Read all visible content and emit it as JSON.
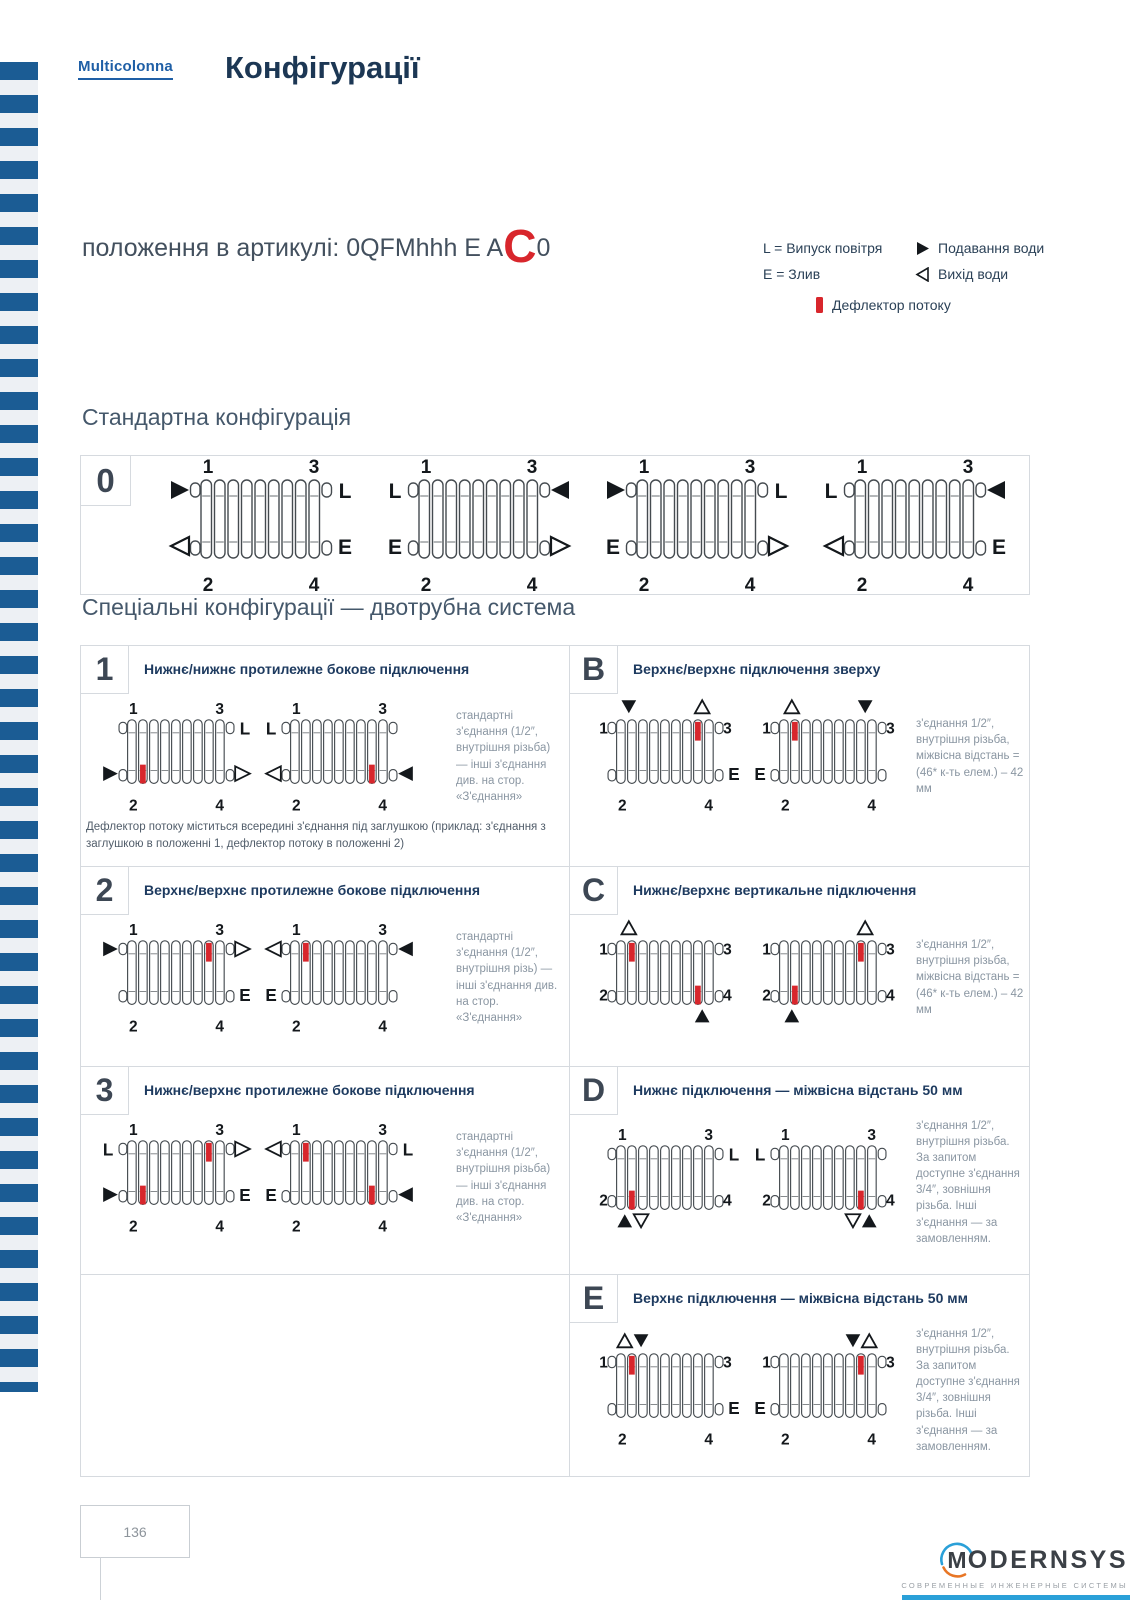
{
  "colors": {
    "stripe_blue": "#1b5c94",
    "brand_blue": "#1f5fa6",
    "navy": "#1d3a5f",
    "red": "#d8262c",
    "logo_blue": "#2aa0d8",
    "logo_orange": "#e87625"
  },
  "header": {
    "brand": "Multicolonna",
    "title": "Конфігурації"
  },
  "article": {
    "prefix": "положення в артикулі: 0QFMhhh E A",
    "highlight": "C",
    "suffix": "0"
  },
  "legend": {
    "l": "L = Випуск повітря",
    "e": "E = Злив",
    "supply": "Подавання води",
    "outlet": "Вихід води",
    "deflector": "Дефлектор потоку"
  },
  "standard": {
    "heading": "Стандартна конфігурація",
    "code": "0",
    "diagrams": [
      {
        "tl": "in",
        "tr": "L",
        "bl": "out",
        "br": "E"
      },
      {
        "tl": "L",
        "tr": "in",
        "bl": "E",
        "br": "out"
      },
      {
        "tl": "in",
        "tr": "L",
        "bl": "E",
        "br": "out"
      },
      {
        "tl": "L",
        "tr": "in",
        "bl": "out",
        "br": "E"
      }
    ]
  },
  "special": {
    "heading": "Спеціальні конфігурації — двотрубна система",
    "layout": [
      "1",
      "B",
      "2",
      "C",
      "3",
      "D",
      "",
      "E"
    ],
    "rows": [
      {
        "code": "1",
        "title": "Нижнє/нижнє протилежне бокове підключення",
        "note": "стандартні з'єднання (1/2″, внутрішня різьба) — інші з'єднання див. на стор. «З'єднання»",
        "footnote": "Дефлектор потоку міститься всередині з'єднання під заглушкою (приклад: з'єднання з заглушкою в положенні 1, дефлектор потоку в положенні 2)",
        "diagrams": [
          {
            "tr": "L",
            "bl": "in",
            "br": "out",
            "defl": [
              "p2"
            ]
          },
          {
            "tl": "L",
            "bl": "out",
            "br": "in",
            "defl": [
              "p4"
            ]
          }
        ]
      },
      {
        "code": "B",
        "title": "Верхнє/верхнє підключення зверху",
        "note": "з'єднання 1/2″, внутрішня різьба, міжвісна відстань = (46* к-ть елем.) – 42 мм",
        "diagrams": [
          {
            "top": [
              {
                "side": "left",
                "t": [
                  "in"
                ]
              },
              {
                "side": "right",
                "t": [
                  "out"
                ]
              }
            ],
            "br": "E",
            "defl": [
              "p3"
            ]
          },
          {
            "top": [
              {
                "side": "left",
                "t": [
                  "out"
                ]
              },
              {
                "side": "right",
                "t": [
                  "in"
                ]
              }
            ],
            "bl": "E",
            "defl": [
              "p1"
            ]
          }
        ]
      },
      {
        "code": "2",
        "title": "Верхнє/верхнє протилежне бокове підключення",
        "note": "стандартні з'єднання (1/2″, внутрішня різь) — інші з'єднання див. на стор. «З'єднання»",
        "diagrams": [
          {
            "tl": "in",
            "tr": "out",
            "br": "E",
            "defl": [
              "p3"
            ]
          },
          {
            "tl": "out",
            "tr": "in",
            "bl": "E",
            "defl": [
              "p1"
            ]
          }
        ]
      },
      {
        "code": "C",
        "title": "Нижнє/верхнє вертикальне підключення",
        "note": "з'єднання 1/2″, внутрішня різьба, міжвісна відстань = (46* к-ть елем.) – 42 мм",
        "diagrams": [
          {
            "top": [
              {
                "side": "left",
                "t": [
                  "out"
                ]
              }
            ],
            "bottom": [
              {
                "side": "right",
                "t": [
                  "in"
                ]
              }
            ],
            "defl": [
              "p1",
              "p4"
            ]
          },
          {
            "top": [
              {
                "side": "right",
                "t": [
                  "out"
                ]
              }
            ],
            "bottom": [
              {
                "side": "left",
                "t": [
                  "in"
                ]
              }
            ],
            "defl": [
              "p3",
              "p2"
            ]
          }
        ]
      },
      {
        "code": "3",
        "title": "Нижнє/верхнє протилежне бокове підключення",
        "note": "стандартні з'єднання (1/2″, внутрішня різьба) — інші з'єднання див. на стор. «З'єднання»",
        "diagrams": [
          {
            "tl": "L",
            "tr": "out",
            "bl": "in",
            "br": "E",
            "defl": [
              "p3",
              "p2"
            ]
          },
          {
            "tl": "out",
            "tr": "L",
            "bl": "E",
            "br": "in",
            "defl": [
              "p1",
              "p4"
            ]
          }
        ]
      },
      {
        "code": "D",
        "title": "Нижнє підключення — міжвісна відстань 50 мм",
        "note": "з'єднання 1/2″, внутрішня різьба. За запитом доступне з'єднання 3/4″, зовнішня різьба. Інші з'єднання — за замовленням.",
        "diagrams": [
          {
            "tr": "L",
            "bottom": [
              {
                "side": "left",
                "t": [
                  "in",
                  "out"
                ]
              }
            ],
            "defl": [
              "p2"
            ]
          },
          {
            "tl": "L",
            "bottom": [
              {
                "side": "right",
                "t": [
                  "out",
                  "in"
                ]
              }
            ],
            "defl": [
              "p4"
            ]
          }
        ]
      },
      {
        "code": "E",
        "title": "Верхнє підключення — міжвісна відстань 50 мм",
        "note": "з'єднання 1/2″, внутрішня різьба. За запитом доступне з'єднання 3/4″, зовнішня різьба. Інші з'єднання — за замовленням.",
        "diagrams": [
          {
            "top": [
              {
                "side": "left",
                "t": [
                  "out",
                  "in"
                ]
              }
            ],
            "br": "E",
            "defl": [
              "p1"
            ]
          },
          {
            "top": [
              {
                "side": "right",
                "t": [
                  "in",
                  "out"
                ]
              }
            ],
            "bl": "E",
            "defl": [
              "p3"
            ]
          }
        ]
      }
    ]
  },
  "footer": {
    "page_number": "136",
    "logo_text": "MODERNSYS",
    "logo_subtitle": "СОВРЕМЕННЫЕ ИНЖЕНЕРНЫЕ СИСТЕМЫ"
  }
}
